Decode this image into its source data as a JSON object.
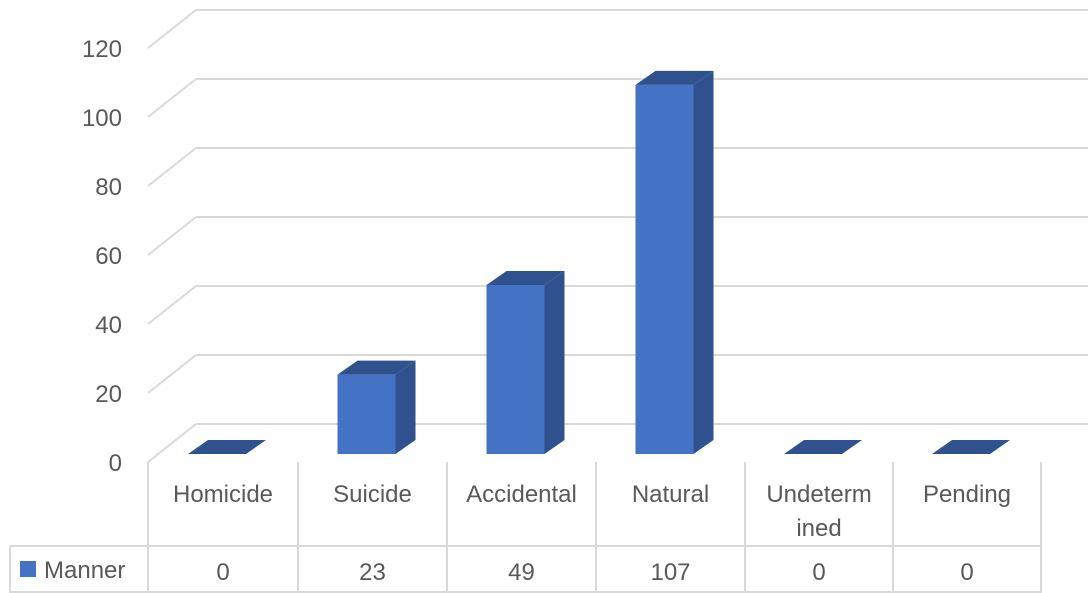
{
  "chart_data": {
    "type": "bar",
    "style": "3d-column-with-data-table",
    "categories": [
      "Homicide",
      "Suicide",
      "Accidental",
      "Natural",
      "Undeterm ined",
      "Pending"
    ],
    "category_lines": [
      [
        "Homicide"
      ],
      [
        "Suicide"
      ],
      [
        "Accidental"
      ],
      [
        "Natural"
      ],
      [
        "Undeterm",
        "ined"
      ],
      [
        "Pending"
      ]
    ],
    "series": [
      {
        "name": "Manner",
        "values": [
          0,
          23,
          49,
          107,
          0,
          0
        ],
        "color": "#4472C4",
        "side_color": "#2F528F",
        "top_color": "#2F528F"
      }
    ],
    "yticks": [
      0,
      20,
      40,
      60,
      80,
      100,
      120
    ],
    "ylim": [
      0,
      120
    ],
    "grid": true,
    "legend": "data-table-left",
    "colors": {
      "grid": "#d9d9d9",
      "text": "#595959"
    }
  }
}
